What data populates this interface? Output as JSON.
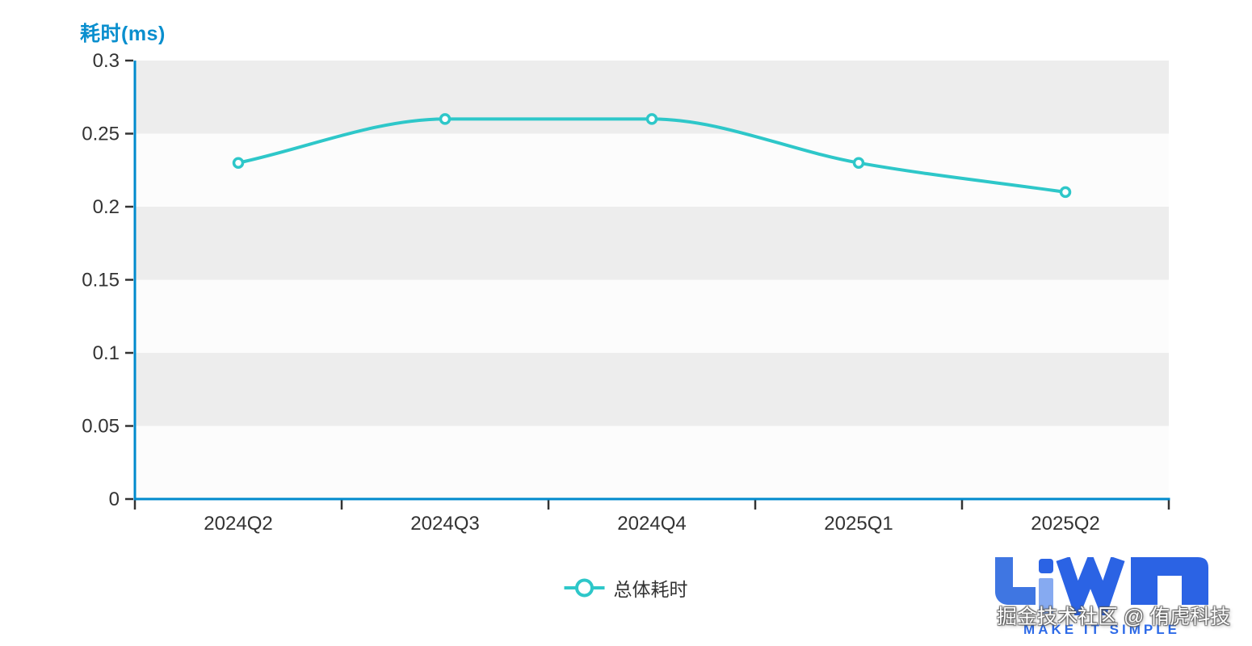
{
  "chart": {
    "title": "耗时(ms)",
    "legend": {
      "label": "总体耗时",
      "position": "bottom-center"
    }
  },
  "chart_data": {
    "type": "line",
    "title": "耗时(ms)",
    "categories": [
      "2024Q2",
      "2024Q3",
      "2024Q4",
      "2025Q1",
      "2025Q2"
    ],
    "series": [
      {
        "name": "总体耗时",
        "values": [
          0.23,
          0.26,
          0.26,
          0.23,
          0.21
        ],
        "color": "#2ec7c9",
        "smooth": true,
        "marker": "empty-circle"
      }
    ],
    "xlabel": "",
    "ylabel": "耗时(ms)",
    "ylim": [
      0,
      0.3
    ],
    "y_ticks": [
      0,
      0.05,
      0.1,
      0.15,
      0.2,
      0.25,
      0.3
    ],
    "y_tick_labels": [
      "0",
      "0.05",
      "0.1",
      "0.15",
      "0.2",
      "0.25",
      "0.3"
    ],
    "grid": "alternating-horizontal-bands",
    "legend_position": "bottom-center"
  },
  "branding": {
    "logo_text": "LiWA",
    "slogan": "MAKE IT SIMPLE",
    "watermark": "掘金技术社区 @ 侑虎科技"
  },
  "colors": {
    "title_blue": "#0a8fce",
    "axis_blue": "#008acd",
    "series_teal": "#2ec7c9",
    "tick_dark": "#333333",
    "label_dark": "#333333",
    "band_gray": "#ededed",
    "band_light": "#fcfcfc",
    "logo_blue": "#2b63e4",
    "logo_blue_light": "#3f76e2",
    "logo_stem_light": "#86aaf1",
    "slogan_blue": "#2e6be8"
  }
}
